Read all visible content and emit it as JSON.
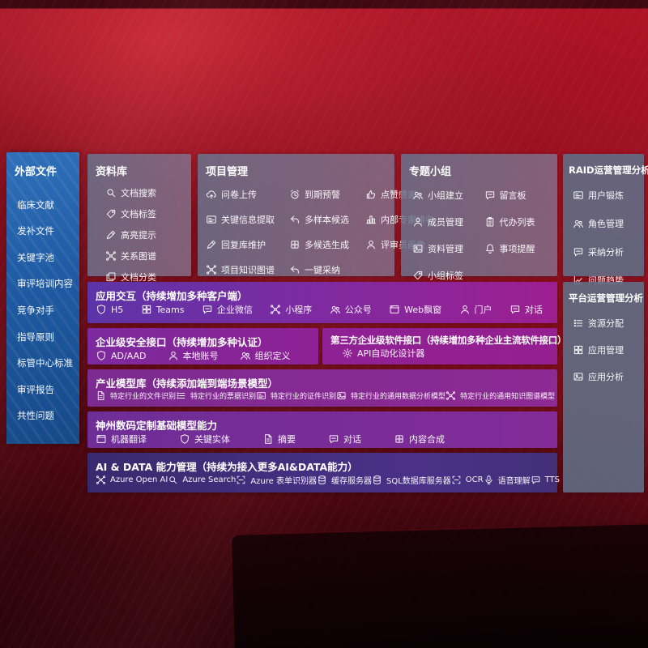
{
  "colors": {
    "background_red": "#93101f",
    "sidebar_blue": "#1f5aa2",
    "panel_slate": "#6c758f",
    "purple_accent": "#8e2194",
    "violet_accent": "#5c34a7",
    "indigo_row": "#3f2d78"
  },
  "sidebar": {
    "title": "外部文件",
    "items": [
      "临床文献",
      "发补文件",
      "关键字池",
      "审评培训内容",
      "竞争对手",
      "指导原则",
      "标管中心标准",
      "审评报告",
      "共性问题"
    ]
  },
  "panels": {
    "repository": {
      "title": "资料库",
      "items": [
        {
          "label": "文档搜索",
          "icon": "doc-search",
          "shape": "search"
        },
        {
          "label": "文档标签",
          "icon": "doc-tag",
          "shape": "tag"
        },
        {
          "label": "高亮提示",
          "icon": "highlight-pen",
          "shape": "pen"
        },
        {
          "label": "关系图谱",
          "icon": "relation-graph",
          "shape": "net"
        },
        {
          "label": "文档分类",
          "icon": "doc-classify",
          "shape": "copy"
        }
      ]
    },
    "project": {
      "title": "项目管理",
      "items": [
        {
          "label": "问卷上传",
          "icon": "cloud-upload",
          "shape": "cloud"
        },
        {
          "label": "到期预警",
          "icon": "due-alarm",
          "shape": "alarm"
        },
        {
          "label": "点赞感谢",
          "icon": "thumbs-up",
          "shape": "thumb"
        },
        {
          "label": "关键信息提取",
          "icon": "key-info-extract",
          "shape": "card"
        },
        {
          "label": "多样本候选",
          "icon": "multi-sample-candidate",
          "shape": "reply"
        },
        {
          "label": "内部专家排名",
          "icon": "expert-ranking",
          "shape": "rank"
        },
        {
          "label": "回复库维护",
          "icon": "reply-library",
          "shape": "pen"
        },
        {
          "label": "多候选生成",
          "icon": "multi-candidate-generate",
          "shape": "puzzle"
        },
        {
          "label": "评审员画像",
          "icon": "reviewer-profile",
          "shape": "user"
        },
        {
          "label": "项目知识图谱",
          "icon": "project-knowledge-graph",
          "shape": "net"
        },
        {
          "label": "一键采纳",
          "icon": "one-click-adopt",
          "shape": "reply"
        }
      ]
    },
    "topic_group": {
      "title": "专题小组",
      "items": [
        {
          "label": "小组建立",
          "icon": "group-create",
          "shape": "users"
        },
        {
          "label": "留言板",
          "icon": "message-board",
          "shape": "chat"
        },
        {
          "label": "成员管理",
          "icon": "member-management",
          "shape": "user"
        },
        {
          "label": "代办列表",
          "icon": "todo-list",
          "shape": "clipboard"
        },
        {
          "label": "资料管理",
          "icon": "material-management",
          "shape": "image"
        },
        {
          "label": "事项提醒",
          "icon": "reminder-bell",
          "shape": "bell"
        },
        {
          "label": "小组标签",
          "icon": "group-tags",
          "shape": "tag"
        }
      ]
    },
    "raid": {
      "title": "RAID运营管理分析",
      "items": [
        {
          "label": "用户锻炼",
          "icon": "user-training",
          "shape": "card"
        },
        {
          "label": "角色管理",
          "icon": "role-management",
          "shape": "users"
        },
        {
          "label": "采纳分析",
          "icon": "adoption-analysis",
          "shape": "chat"
        },
        {
          "label": "问题趋势",
          "icon": "issue-trend",
          "shape": "chart"
        }
      ]
    },
    "platform": {
      "title": "平台运营管理分析",
      "items": [
        {
          "label": "资源分配",
          "icon": "resource-allocation",
          "shape": "list"
        },
        {
          "label": "应用管理",
          "icon": "app-management",
          "shape": "grid"
        },
        {
          "label": "应用分析",
          "icon": "app-analysis",
          "shape": "image"
        }
      ]
    }
  },
  "rows": {
    "interaction": {
      "title": "应用交互（持续增加多种客户端）",
      "items": [
        {
          "label": "H5",
          "icon": "h5",
          "shape": "shield"
        },
        {
          "label": "Teams",
          "icon": "teams",
          "shape": "grid"
        },
        {
          "label": "企业微信",
          "icon": "wecom",
          "shape": "chat"
        },
        {
          "label": "小程序",
          "icon": "mini-program",
          "shape": "net"
        },
        {
          "label": "公众号",
          "icon": "official-account",
          "shape": "users"
        },
        {
          "label": "Web飘窗",
          "icon": "web-popup",
          "shape": "window"
        },
        {
          "label": "门户",
          "icon": "portal",
          "shape": "user"
        },
        {
          "label": "对话",
          "icon": "dialog",
          "shape": "chat"
        }
      ]
    },
    "security": {
      "title": "企业级安全接口（持续增加多种认证）",
      "items": [
        {
          "label": "AD/AAD",
          "icon": "ad-aad",
          "shape": "shield"
        },
        {
          "label": "本地账号",
          "icon": "local-account",
          "shape": "user"
        },
        {
          "label": "组织定义",
          "icon": "org-definition",
          "shape": "users"
        }
      ]
    },
    "third_party": {
      "title": "第三方企业级软件接口（持续增加多种企业主流软件接口）",
      "items": [
        {
          "label": "API自动化设计器",
          "icon": "api-automation-designer",
          "shape": "gear"
        }
      ]
    },
    "industry_models": {
      "title": "产业模型库（持续添加端到端场景模型）",
      "items": [
        {
          "label": "特定行业的文件识别",
          "icon": "industry-file-recognition",
          "shape": "doc"
        },
        {
          "label": "特定行业的票据识别",
          "icon": "industry-receipt-recognition",
          "shape": "list"
        },
        {
          "label": "特定行业的证件识别",
          "icon": "industry-id-recognition",
          "shape": "card"
        },
        {
          "label": "特定行业的通用数据分析模型",
          "icon": "industry-data-analysis-model",
          "shape": "image"
        },
        {
          "label": "特定行业的通用知识图谱模型",
          "icon": "industry-knowledge-graph-model",
          "shape": "net"
        }
      ]
    },
    "base_models": {
      "title": "神州数码定制基础模型能力",
      "items": [
        {
          "label": "机器翻译",
          "icon": "machine-translation",
          "shape": "window"
        },
        {
          "label": "关键实体",
          "icon": "key-entity",
          "shape": "shield"
        },
        {
          "label": "摘要",
          "icon": "summary",
          "shape": "doc"
        },
        {
          "label": "对话",
          "icon": "dialogue",
          "shape": "chat"
        },
        {
          "label": "内容合成",
          "icon": "content-synthesis",
          "shape": "puzzle"
        }
      ]
    },
    "ai_data": {
      "title": "AI & DATA 能力管理（持续为接入更多AI&DATA能力）",
      "items": [
        {
          "label": "Azure Open AI",
          "icon": "azure-openai",
          "shape": "net"
        },
        {
          "label": "Azure Search",
          "icon": "azure-search",
          "shape": "search"
        },
        {
          "label": "Azure 表单识别器",
          "icon": "azure-form-recognizer",
          "shape": "scan"
        },
        {
          "label": "缓存服务器",
          "icon": "cache-server",
          "shape": "db"
        },
        {
          "label": "SQL数据库服务器",
          "icon": "sql-database-server",
          "shape": "db"
        },
        {
          "label": "OCR",
          "icon": "ocr",
          "shape": "scan"
        },
        {
          "label": "语音理解",
          "icon": "speech-understanding",
          "shape": "mic"
        },
        {
          "label": "TTS",
          "icon": "tts",
          "shape": "chat"
        }
      ]
    }
  }
}
